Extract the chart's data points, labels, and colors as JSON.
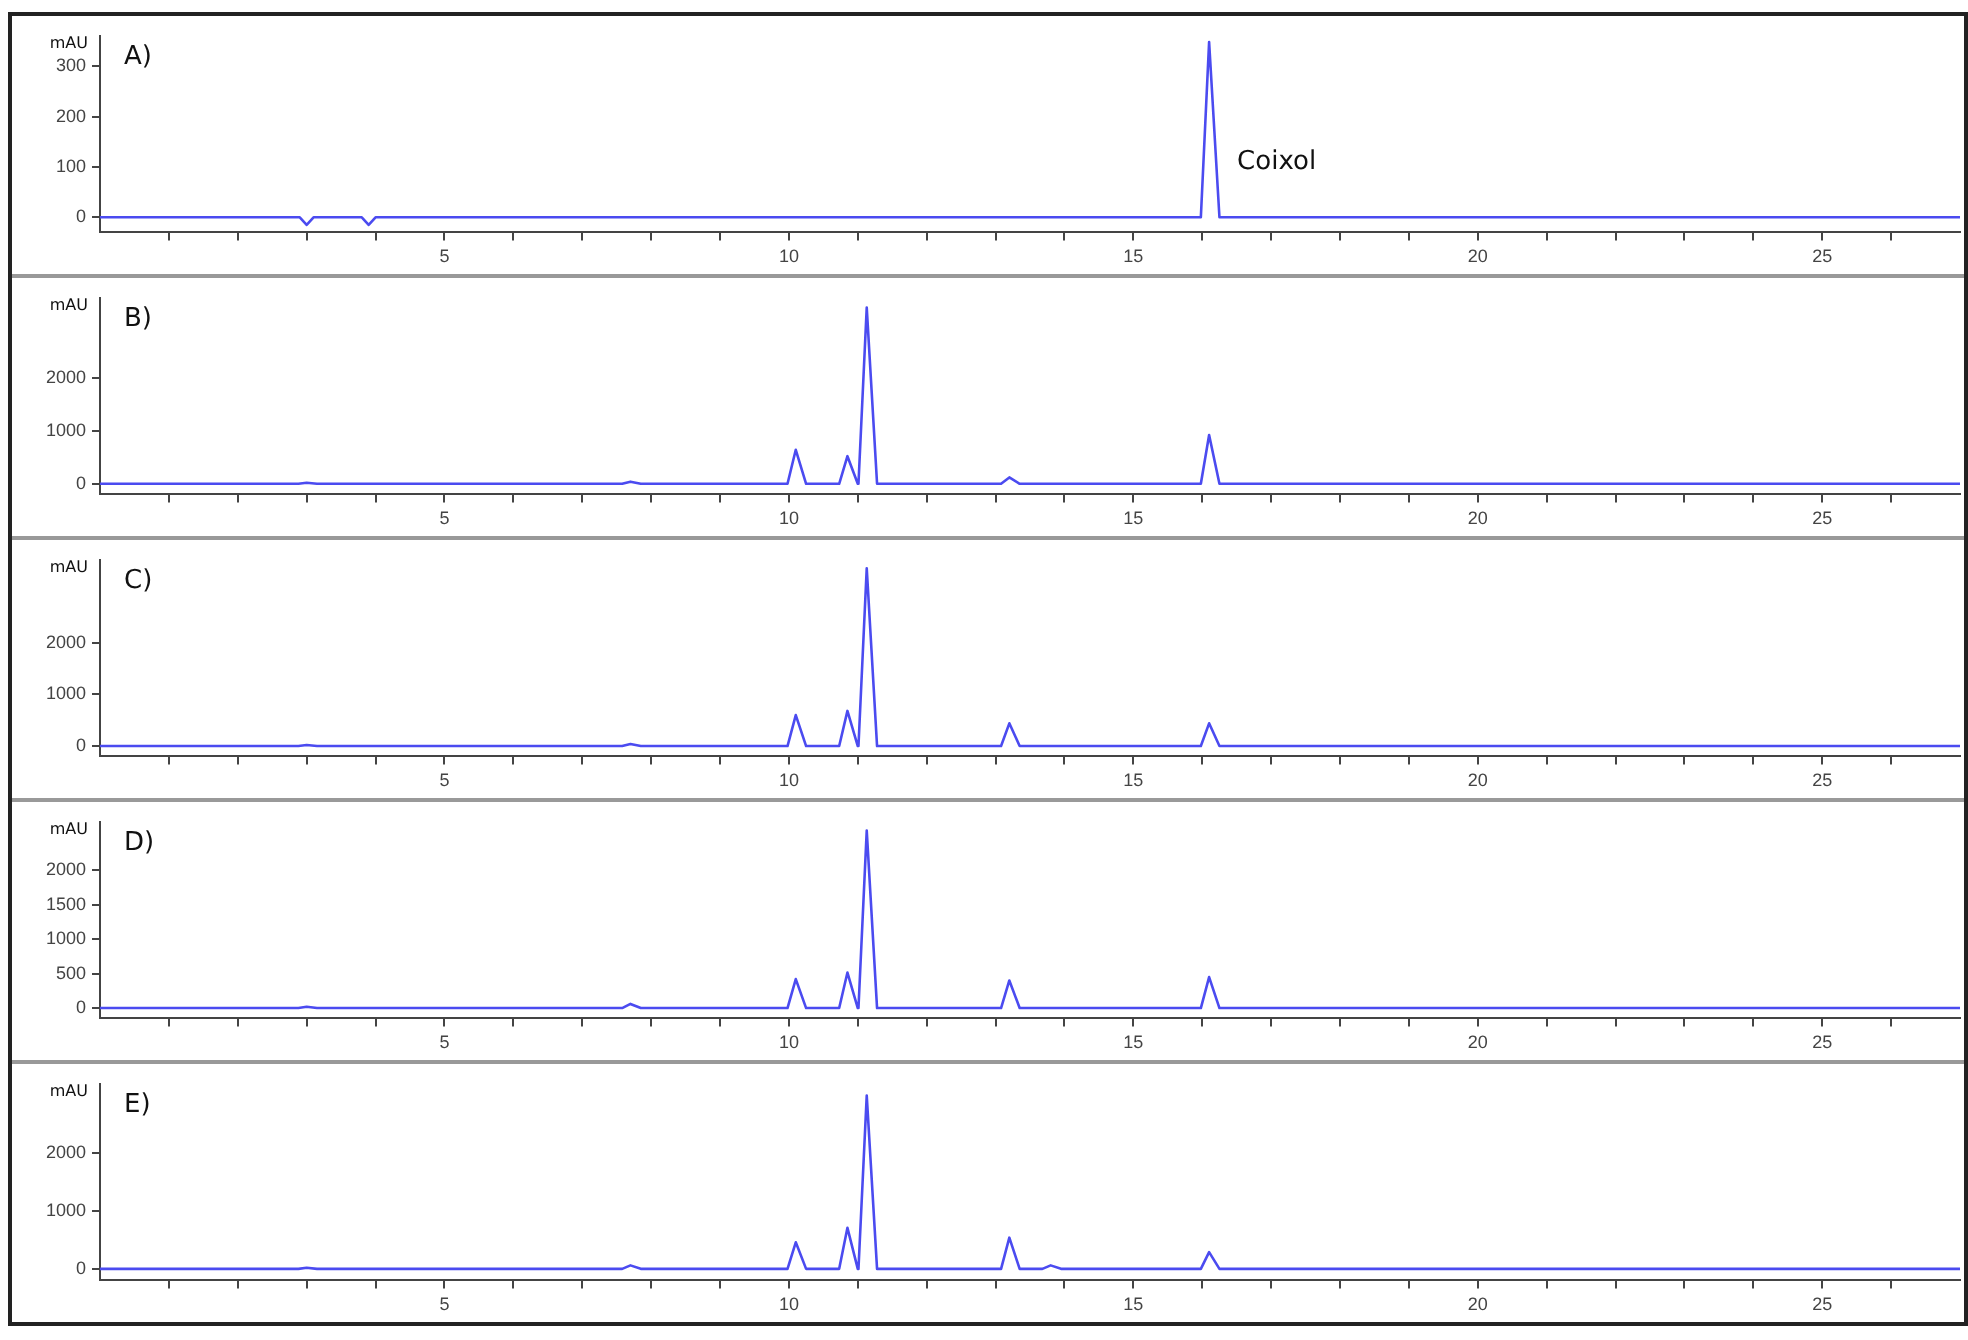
{
  "chart_data": [
    {
      "type": "line",
      "title": "A)",
      "ylabel": "mAU",
      "annotations": [
        {
          "text": "Coixol",
          "x": 16.1,
          "y": 110
        }
      ],
      "xlim": [
        0,
        27
      ],
      "ylim": [
        -30,
        360
      ],
      "yticks": [
        0,
        100,
        200,
        300
      ],
      "xticks": [
        {
          "value": 1,
          "label": null
        },
        {
          "value": 2,
          "label": null
        },
        {
          "value": 3,
          "label": null
        },
        {
          "value": 4,
          "label": null
        },
        5,
        {
          "value": 6,
          "label": null
        },
        {
          "value": 7,
          "label": null
        },
        {
          "value": 8,
          "label": null
        },
        {
          "value": 9,
          "label": null
        },
        10,
        {
          "value": 11,
          "label": null
        },
        {
          "value": 12,
          "label": null
        },
        {
          "value": 13,
          "label": null
        },
        {
          "value": 14,
          "label": null
        },
        15,
        {
          "value": 16,
          "label": null
        },
        {
          "value": 17,
          "label": null
        },
        {
          "value": 18,
          "label": null
        },
        {
          "value": 19,
          "label": null
        },
        20,
        {
          "value": 21,
          "label": null
        },
        {
          "value": 22,
          "label": null
        },
        {
          "value": 23,
          "label": null
        },
        {
          "value": 24,
          "label": null
        },
        25,
        {
          "value": 26,
          "label": null
        }
      ],
      "series": [
        {
          "color": "#4b4bf0",
          "x": [
            0,
            2.9,
            3.0,
            3.1,
            3.8,
            3.9,
            4.0,
            15.98,
            16.1,
            16.25,
            27
          ],
          "values": [
            0,
            0,
            -15,
            0,
            0,
            -15,
            0,
            0,
            348,
            0,
            0
          ]
        }
      ]
    },
    {
      "type": "line",
      "title": "B)",
      "ylabel": "mAU",
      "xlim": [
        0,
        27
      ],
      "ylim": [
        -200,
        3500
      ],
      "yticks": [
        0,
        1000,
        2000
      ],
      "xticks": [
        {
          "value": 1,
          "label": null
        },
        {
          "value": 2,
          "label": null
        },
        {
          "value": 3,
          "label": null
        },
        {
          "value": 4,
          "label": null
        },
        5,
        {
          "value": 6,
          "label": null
        },
        {
          "value": 7,
          "label": null
        },
        {
          "value": 8,
          "label": null
        },
        {
          "value": 9,
          "label": null
        },
        10,
        {
          "value": 11,
          "label": null
        },
        {
          "value": 12,
          "label": null
        },
        {
          "value": 13,
          "label": null
        },
        {
          "value": 14,
          "label": null
        },
        15,
        {
          "value": 16,
          "label": null
        },
        {
          "value": 17,
          "label": null
        },
        {
          "value": 18,
          "label": null
        },
        {
          "value": 19,
          "label": null
        },
        20,
        {
          "value": 21,
          "label": null
        },
        {
          "value": 22,
          "label": null
        },
        {
          "value": 23,
          "label": null
        },
        {
          "value": 24,
          "label": null
        },
        25,
        {
          "value": 26,
          "label": null
        }
      ],
      "series": [
        {
          "color": "#4b4bf0",
          "x": [
            0,
            2.88,
            3.0,
            3.15,
            7.58,
            7.7,
            7.85,
            9.98,
            10.1,
            10.25,
            10.73,
            10.85,
            11.0,
            11.01,
            11.13,
            11.28,
            13.08,
            13.2,
            13.35,
            15.98,
            16.1,
            16.25,
            27
          ],
          "values": [
            0,
            0,
            20,
            0,
            0,
            40,
            0,
            0,
            640,
            0,
            0,
            520,
            0,
            0,
            3320,
            0,
            0,
            120,
            0,
            0,
            920,
            0,
            0
          ]
        }
      ]
    },
    {
      "type": "line",
      "title": "C)",
      "ylabel": "mAU",
      "xlim": [
        0,
        27
      ],
      "ylim": [
        -200,
        3600
      ],
      "yticks": [
        0,
        1000,
        2000
      ],
      "xticks": [
        {
          "value": 1,
          "label": null
        },
        {
          "value": 2,
          "label": null
        },
        {
          "value": 3,
          "label": null
        },
        {
          "value": 4,
          "label": null
        },
        5,
        {
          "value": 6,
          "label": null
        },
        {
          "value": 7,
          "label": null
        },
        {
          "value": 8,
          "label": null
        },
        {
          "value": 9,
          "label": null
        },
        10,
        {
          "value": 11,
          "label": null
        },
        {
          "value": 12,
          "label": null
        },
        {
          "value": 13,
          "label": null
        },
        {
          "value": 14,
          "label": null
        },
        15,
        {
          "value": 16,
          "label": null
        },
        {
          "value": 17,
          "label": null
        },
        {
          "value": 18,
          "label": null
        },
        {
          "value": 19,
          "label": null
        },
        20,
        {
          "value": 21,
          "label": null
        },
        {
          "value": 22,
          "label": null
        },
        {
          "value": 23,
          "label": null
        },
        {
          "value": 24,
          "label": null
        },
        25,
        {
          "value": 26,
          "label": null
        }
      ],
      "series": [
        {
          "color": "#4b4bf0",
          "x": [
            0,
            2.88,
            3.0,
            3.15,
            7.58,
            7.7,
            7.85,
            9.98,
            10.1,
            10.25,
            10.73,
            10.85,
            11.0,
            11.01,
            11.13,
            11.28,
            13.08,
            13.2,
            13.35,
            15.98,
            16.1,
            16.25,
            27
          ],
          "values": [
            0,
            0,
            20,
            0,
            0,
            40,
            0,
            0,
            600,
            0,
            0,
            680,
            0,
            0,
            3440,
            0,
            0,
            440,
            0,
            0,
            440,
            0,
            0
          ]
        }
      ]
    },
    {
      "type": "line",
      "title": "D)",
      "ylabel": "mAU",
      "xlim": [
        0,
        27
      ],
      "ylim": [
        -150,
        2700
      ],
      "yticks": [
        0,
        500,
        1000,
        1500,
        2000
      ],
      "xticks": [
        {
          "value": 1,
          "label": null
        },
        {
          "value": 2,
          "label": null
        },
        {
          "value": 3,
          "label": null
        },
        {
          "value": 4,
          "label": null
        },
        5,
        {
          "value": 6,
          "label": null
        },
        {
          "value": 7,
          "label": null
        },
        {
          "value": 8,
          "label": null
        },
        {
          "value": 9,
          "label": null
        },
        10,
        {
          "value": 11,
          "label": null
        },
        {
          "value": 12,
          "label": null
        },
        {
          "value": 13,
          "label": null
        },
        {
          "value": 14,
          "label": null
        },
        15,
        {
          "value": 16,
          "label": null
        },
        {
          "value": 17,
          "label": null
        },
        {
          "value": 18,
          "label": null
        },
        {
          "value": 19,
          "label": null
        },
        20,
        {
          "value": 21,
          "label": null
        },
        {
          "value": 22,
          "label": null
        },
        {
          "value": 23,
          "label": null
        },
        {
          "value": 24,
          "label": null
        },
        25,
        {
          "value": 26,
          "label": null
        }
      ],
      "series": [
        {
          "color": "#4b4bf0",
          "x": [
            0,
            2.88,
            3.0,
            3.15,
            7.58,
            7.7,
            7.85,
            9.98,
            10.1,
            10.25,
            10.73,
            10.85,
            11.0,
            11.01,
            11.13,
            11.28,
            13.08,
            13.2,
            13.35,
            15.98,
            16.1,
            16.25,
            27
          ],
          "values": [
            0,
            0,
            20,
            0,
            0,
            60,
            0,
            0,
            420,
            0,
            0,
            515,
            0,
            0,
            2575,
            0,
            0,
            400,
            0,
            0,
            450,
            0,
            0
          ]
        }
      ]
    },
    {
      "type": "line",
      "title": "E)",
      "ylabel": "mAU",
      "xlim": [
        0,
        27
      ],
      "ylim": [
        -200,
        3200
      ],
      "yticks": [
        0,
        1000,
        2000
      ],
      "xticks": [
        {
          "value": 1,
          "label": null
        },
        {
          "value": 2,
          "label": null
        },
        {
          "value": 3,
          "label": null
        },
        {
          "value": 4,
          "label": null
        },
        5,
        {
          "value": 6,
          "label": null
        },
        {
          "value": 7,
          "label": null
        },
        {
          "value": 8,
          "label": null
        },
        {
          "value": 9,
          "label": null
        },
        10,
        {
          "value": 11,
          "label": null
        },
        {
          "value": 12,
          "label": null
        },
        {
          "value": 13,
          "label": null
        },
        {
          "value": 14,
          "label": null
        },
        15,
        {
          "value": 16,
          "label": null
        },
        {
          "value": 17,
          "label": null
        },
        {
          "value": 18,
          "label": null
        },
        {
          "value": 19,
          "label": null
        },
        20,
        {
          "value": 21,
          "label": null
        },
        {
          "value": 22,
          "label": null
        },
        {
          "value": 23,
          "label": null
        },
        {
          "value": 24,
          "label": null
        },
        25,
        {
          "value": 26,
          "label": null
        }
      ],
      "series": [
        {
          "color": "#4b4bf0",
          "x": [
            0,
            2.88,
            3.0,
            3.15,
            7.58,
            7.7,
            7.85,
            9.98,
            10.1,
            10.25,
            10.73,
            10.85,
            11.0,
            11.01,
            11.13,
            11.28,
            13.08,
            13.2,
            13.35,
            13.68,
            13.8,
            13.95,
            15.98,
            16.1,
            16.25,
            27
          ],
          "values": [
            0,
            0,
            20,
            0,
            0,
            60,
            0,
            0,
            460,
            0,
            0,
            710,
            0,
            0,
            3000,
            0,
            0,
            540,
            0,
            0,
            60,
            0,
            0,
            290,
            0,
            0
          ]
        }
      ]
    }
  ]
}
